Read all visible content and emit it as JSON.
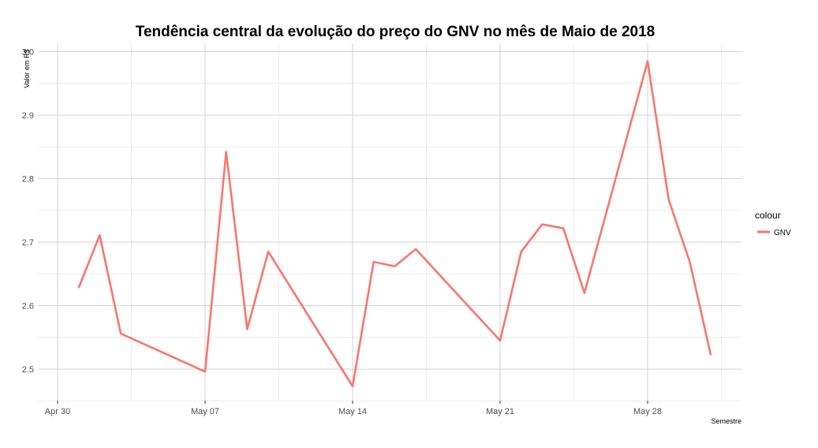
{
  "chart_data": {
    "type": "line",
    "title": "Tendência central da evolução do preço do GNV no mês de Maio de 2018",
    "xlabel": "Semestre",
    "ylabel": "Valor em R$",
    "x_type": "date",
    "xlim": [
      "2018-04-30",
      "2018-06-01"
    ],
    "ylim": [
      2.45,
      3.0
    ],
    "x_ticks": [
      {
        "date": "2018-04-30",
        "label": "Apr 30"
      },
      {
        "date": "2018-05-07",
        "label": "May 07"
      },
      {
        "date": "2018-05-14",
        "label": "May 14"
      },
      {
        "date": "2018-05-21",
        "label": "May 21"
      },
      {
        "date": "2018-05-28",
        "label": "May 28"
      }
    ],
    "y_ticks": [
      2.5,
      2.6,
      2.7,
      2.8,
      2.9,
      3.0
    ],
    "y_tick_labels": [
      "2.5",
      "2.6",
      "2.7",
      "2.8",
      "2.9",
      "3.0"
    ],
    "grid": true,
    "legend": {
      "title": "colour",
      "position": "right"
    },
    "series": [
      {
        "name": "GNV",
        "color": "#F8766D",
        "points": [
          {
            "x": "2018-05-01",
            "y": 2.628
          },
          {
            "x": "2018-05-02",
            "y": 2.711
          },
          {
            "x": "2018-05-03",
            "y": 2.556
          },
          {
            "x": "2018-05-07",
            "y": 2.496
          },
          {
            "x": "2018-05-08",
            "y": 2.842
          },
          {
            "x": "2018-05-09",
            "y": 2.563
          },
          {
            "x": "2018-05-10",
            "y": 2.685
          },
          {
            "x": "2018-05-14",
            "y": 2.473
          },
          {
            "x": "2018-05-15",
            "y": 2.669
          },
          {
            "x": "2018-05-16",
            "y": 2.662
          },
          {
            "x": "2018-05-17",
            "y": 2.689
          },
          {
            "x": "2018-05-21",
            "y": 2.545
          },
          {
            "x": "2018-05-22",
            "y": 2.685
          },
          {
            "x": "2018-05-23",
            "y": 2.728
          },
          {
            "x": "2018-05-24",
            "y": 2.722
          },
          {
            "x": "2018-05-25",
            "y": 2.62
          },
          {
            "x": "2018-05-28",
            "y": 2.985
          },
          {
            "x": "2018-05-29",
            "y": 2.767
          },
          {
            "x": "2018-05-30",
            "y": 2.669
          },
          {
            "x": "2018-05-31",
            "y": 2.522
          }
        ]
      }
    ]
  }
}
